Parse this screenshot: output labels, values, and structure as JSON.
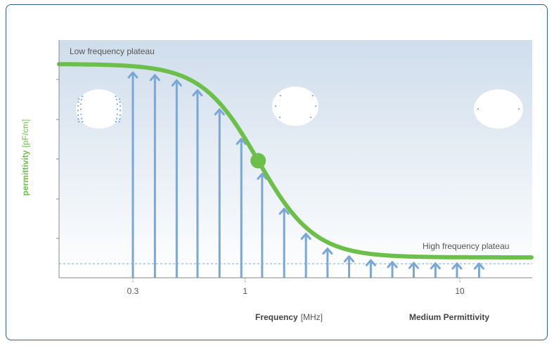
{
  "chart_data": {
    "type": "line",
    "title": "",
    "ylabel_bold": "permittivity",
    "ylabel_unit": "[pF/cm]",
    "xlabel_bold": "Frequency",
    "xlabel_unit": "[MHz]",
    "secondary_label": "Medium Permittivity",
    "x_scale": "log",
    "x_ticks": [
      {
        "value": 0.3,
        "label": "0.3"
      },
      {
        "value": 1,
        "label": "1"
      },
      {
        "value": 10,
        "label": "10"
      }
    ],
    "annotations": {
      "low_plateau": "Low frequency plateau",
      "high_plateau": "High frequency plateau"
    },
    "curve": {
      "description": "sigmoid permittivity dispersion",
      "low_plateau_level": 1.0,
      "high_plateau_level": 0.05,
      "inflection_frequency_mhz": 1.15
    },
    "arrows_x_mhz": [
      0.3,
      0.38,
      0.48,
      0.6,
      0.76,
      0.96,
      1.2,
      1.52,
      1.92,
      2.42,
      3.05,
      3.85,
      4.85,
      6.1,
      7.7,
      9.7,
      12.3
    ],
    "colors": {
      "curve": "#6cc04a",
      "arrows": "#7ba7d6",
      "axis": "#666666",
      "dashed_baseline": "#7ba7d6",
      "background_top": "#cfddec",
      "background_bottom": "#ffffff",
      "ylabel": "#6cc04a"
    }
  }
}
